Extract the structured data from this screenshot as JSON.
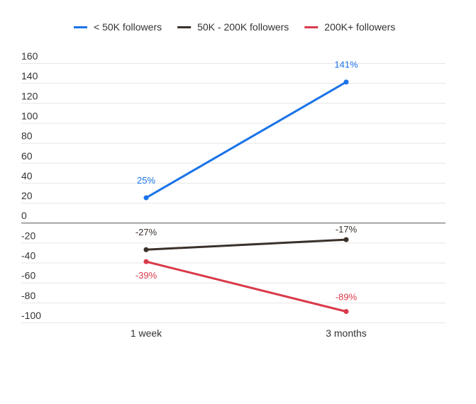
{
  "chart_data": {
    "type": "line",
    "categories": [
      "1 week",
      "3 months"
    ],
    "series": [
      {
        "name": "< 50K followers",
        "values": [
          25,
          141
        ],
        "labels": [
          "25%",
          "141%"
        ],
        "color": "#1a73e8"
      },
      {
        "name": "50K - 200K followers",
        "values": [
          -27,
          -17
        ],
        "labels": [
          "-27%",
          "-17%"
        ],
        "color": "#3a302a"
      },
      {
        "name": "200K+ followers",
        "values": [
          -39,
          -89
        ],
        "labels": [
          "-39%",
          "-89%"
        ],
        "color": "#d93a4a"
      }
    ],
    "y_ticks": [
      "160",
      "140",
      "120",
      "100",
      "80",
      "60",
      "40",
      "20",
      "0",
      "-20",
      "-40",
      "-60",
      "-80",
      "-100"
    ],
    "ylim": [
      -100,
      160
    ],
    "grid": true,
    "legend_position": "top-center"
  }
}
